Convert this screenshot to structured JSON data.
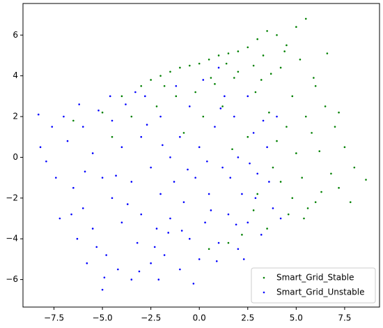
{
  "chart_data": {
    "type": "scatter",
    "xlim": [
      -9.1,
      9.3
    ],
    "ylim": [
      -7.35,
      7.55
    ],
    "xticks": [
      {
        "value": -7.5,
        "label": "−7.5"
      },
      {
        "value": -5,
        "label": "−5.0"
      },
      {
        "value": -2.5,
        "label": "−2.5"
      },
      {
        "value": 0,
        "label": "0.0"
      },
      2.5,
      {
        "value": 5,
        "label": "5.0"
      },
      7.5
    ],
    "yticks": [
      {
        "value": -6,
        "label": "−6"
      },
      {
        "value": -4,
        "label": "−4"
      },
      {
        "value": -2,
        "label": "−2"
      },
      0,
      2,
      4,
      6
    ],
    "legend": "lower right",
    "series": [
      {
        "name": "Smart_Grid_Stable",
        "color": "#008000",
        "x": [
          -6.5,
          -5,
          -4,
          -3,
          -2.5,
          -2,
          -1.5,
          -1,
          -0.5,
          0,
          0.5,
          1,
          1.5,
          2,
          2.5,
          3,
          3.5,
          4,
          4.5,
          5,
          5.5,
          2.8,
          1.8,
          0.8,
          -0.2,
          -1.2,
          -2.2,
          3.2,
          4.2,
          5.2,
          6,
          6.5,
          7,
          7.5,
          8,
          8.6,
          7.2,
          6.8,
          6.2,
          5.8,
          5.5,
          4.8,
          4.5,
          5,
          5.3,
          5.6,
          5.4,
          4.8,
          4.2,
          4,
          3.6,
          3.8,
          4.6,
          3.5,
          2.8,
          2.2,
          1.5,
          0.5,
          2.5,
          3,
          6,
          7.8,
          6.6,
          1.2,
          0.2,
          -3.5,
          -4.5,
          2,
          3.3,
          4.4,
          -0.8,
          1.7,
          6.3,
          5.9,
          7.2,
          2.9,
          3.7,
          -1.8,
          0.6,
          1.4
        ],
        "values": [
          1.8,
          2.2,
          3.0,
          3.5,
          3.8,
          4.0,
          4.2,
          4.4,
          4.5,
          4.6,
          4.8,
          5.0,
          5.1,
          5.2,
          5.4,
          5.8,
          6.2,
          6.0,
          5.5,
          6.4,
          6.8,
          4.5,
          3.9,
          3.6,
          3.2,
          3.0,
          2.5,
          3.8,
          4.4,
          4.8,
          3.5,
          2.5,
          1.5,
          0.5,
          -0.5,
          -1.1,
          -1.5,
          -0.8,
          0.3,
          1.2,
          2.0,
          3.0,
          1.5,
          0.2,
          -1.0,
          -2.5,
          -3.0,
          -2.0,
          -1.2,
          0.8,
          2.2,
          -0.5,
          -2.8,
          -3.5,
          -2.6,
          -3.8,
          -4.2,
          -4.5,
          1.0,
          -1.8,
          -2.2,
          -2.2,
          5.1,
          2.5,
          2.0,
          2.0,
          1.0,
          4.2,
          5.0,
          5.2,
          1.2,
          0.4,
          -1.7,
          3.9,
          2.2,
          3.2,
          4.1,
          3.5,
          3.9,
          4.6
        ]
      },
      {
        "name": "Smart_Grid_Unstable",
        "color": "#0000ff",
        "x": [
          -8.3,
          -8.2,
          -7.9,
          -7.6,
          -7.2,
          -7,
          -6.8,
          -6.5,
          -6.3,
          -6,
          -6,
          -5.8,
          -5.5,
          -5.5,
          -5.2,
          -5,
          -5,
          -4.8,
          -4.5,
          -4.5,
          -4.2,
          -4,
          -4,
          -3.8,
          -3.5,
          -3.5,
          -3.2,
          -3,
          -3,
          -2.8,
          -2.5,
          -2.5,
          -2.2,
          -2,
          -2,
          -1.8,
          -1.5,
          -1.5,
          -1.2,
          -1,
          -1,
          -0.8,
          -0.5,
          -0.5,
          -0.2,
          0,
          0,
          0.2,
          0.3,
          0.5,
          0.8,
          1,
          1,
          1.2,
          1.5,
          1.8,
          2,
          2,
          2.2,
          2.5,
          2.5,
          2.8,
          3,
          3.2,
          3.5,
          3.8,
          4,
          4.2,
          -6.2,
          -5.9,
          -4.9,
          -4.3,
          -3.7,
          -3.1,
          -2.7,
          -2.3,
          -1.9,
          -1.3,
          -0.9,
          -0.3,
          0.4,
          0.9,
          1.3,
          1.6,
          2.3,
          2.6,
          3.3,
          -7.4,
          -6.6,
          -5.3,
          -4.6,
          -3.3,
          -2.1,
          -1.6,
          -0.6,
          0.6,
          1.1,
          1.9,
          2.9,
          3.6
        ],
        "values": [
          2.1,
          0.5,
          -0.2,
          1.5,
          -3.0,
          2.0,
          0.8,
          -1.5,
          -4.0,
          1.5,
          -2.5,
          -5.2,
          0.2,
          -3.5,
          2.3,
          -1.0,
          -6.5,
          -4.8,
          1.8,
          -2.0,
          -5.5,
          0.5,
          -3.2,
          2.6,
          -1.2,
          -6.0,
          -4.2,
          1.0,
          -2.8,
          3.0,
          -0.5,
          -5.2,
          -3.5,
          2.0,
          -1.8,
          -4.8,
          0.0,
          -3.0,
          3.5,
          -5.5,
          1.0,
          -2.2,
          -4.0,
          2.5,
          -1.0,
          -5.0,
          0.5,
          3.8,
          -3.2,
          -1.8,
          1.5,
          -4.2,
          4.4,
          -0.5,
          -2.8,
          2.0,
          -4.5,
          0.0,
          -1.8,
          3.0,
          -3.2,
          1.2,
          -0.8,
          -3.8,
          0.5,
          -2.5,
          2.0,
          -3.0,
          2.6,
          -0.7,
          -5.9,
          -0.9,
          -2.3,
          -5.6,
          1.6,
          -4.4,
          0.6,
          -1.2,
          -3.6,
          -6.2,
          -0.2,
          -5.1,
          3.0,
          -1.0,
          -5.0,
          -0.3,
          1.8,
          -1.0,
          -2.8,
          -4.4,
          3.0,
          3.2,
          -6.0,
          -3.7,
          -0.6,
          -2.6,
          2.4,
          -3.3,
          -2.0,
          -1.2
        ]
      }
    ]
  }
}
